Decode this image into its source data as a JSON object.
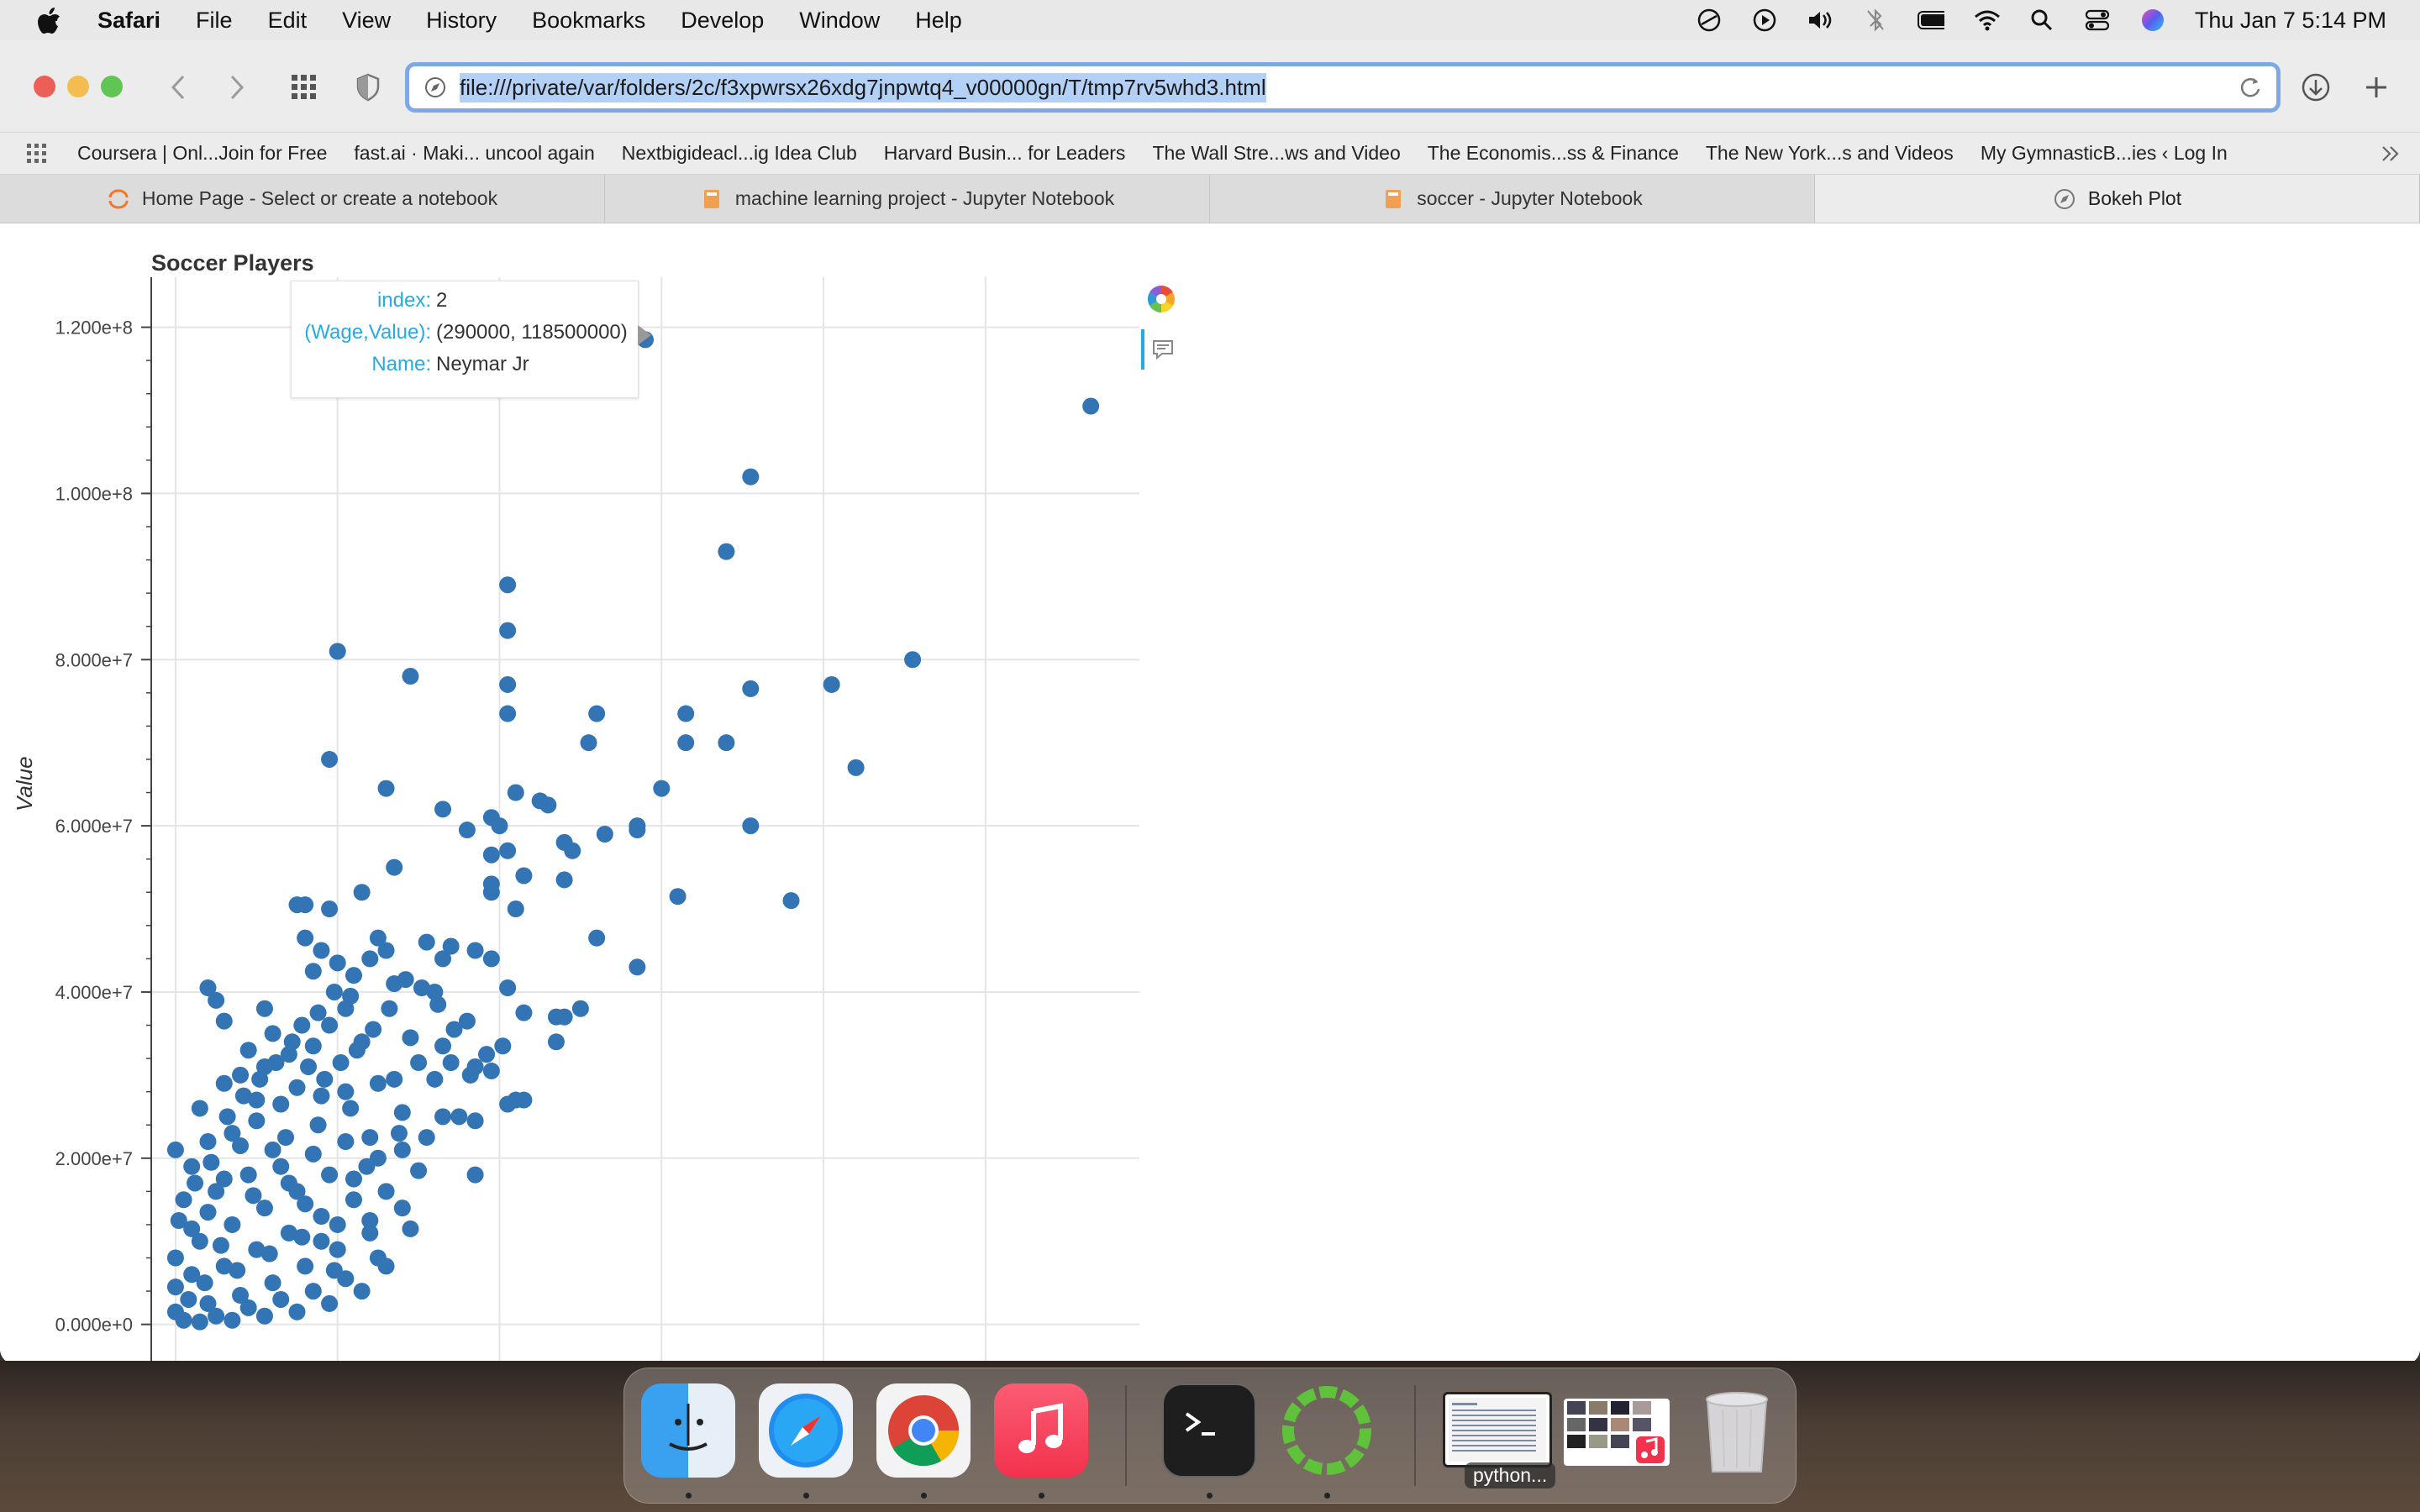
{
  "menubar": {
    "app": "Safari",
    "items": [
      "File",
      "Edit",
      "View",
      "History",
      "Bookmarks",
      "Develop",
      "Window",
      "Help"
    ],
    "clock": "Thu Jan 7  5:14 PM"
  },
  "browser": {
    "url": "file:///private/var/folders/2c/f3xpwrsx26xdg7jnpwtq4_v00000gn/T/tmp7rv5whd3.html",
    "favorites": [
      "Coursera | Onl...Join for Free",
      "fast.ai · Maki... uncool again",
      "Nextbigideacl...ig Idea Club",
      "Harvard Busin... for Leaders",
      "The Wall Stre...ws and Video",
      "The Economis...ss & Finance",
      "The New York...s and Videos",
      "My GymnasticB...ies ‹ Log In"
    ],
    "tabs": [
      {
        "label": "Home Page - Select or create a notebook",
        "icon": "jupyter-icon"
      },
      {
        "label": "machine learning project - Jupyter Notebook",
        "icon": "notebook-icon"
      },
      {
        "label": "soccer - Jupyter Notebook",
        "icon": "notebook-icon"
      },
      {
        "label": "Bokeh Plot",
        "icon": "compass-icon"
      }
    ]
  },
  "tooltip": {
    "index_label": "index:",
    "index_value": "2",
    "wv_label": "(Wage,Value):",
    "wv_value": "(290000, 118500000)",
    "name_label": "Name:",
    "name_value": "Neymar Jr"
  },
  "dock": {
    "running_label": "python..."
  },
  "chart_data": {
    "type": "scatter",
    "title": "Soccer Players",
    "xlabel": "",
    "ylabel": "Value",
    "xlim": [
      -15000,
      595000
    ],
    "ylim": [
      -6000000,
      124000000
    ],
    "yticks": [
      "0.000e+0",
      "2.000e+7",
      "4.000e+7",
      "6.000e+7",
      "8.000e+7",
      "1.000e+8",
      "1.200e+8"
    ],
    "ytick_values": [
      0,
      20000000,
      40000000,
      60000000,
      80000000,
      100000000,
      120000000
    ],
    "xtick_values": [
      0,
      100000,
      200000,
      300000,
      400000,
      500000
    ],
    "grid": true,
    "color": "#3274b4",
    "points": [
      [
        290000,
        118500000
      ],
      [
        565000,
        110500000
      ],
      [
        355000,
        102000000
      ],
      [
        340000,
        93000000
      ],
      [
        205000,
        89000000
      ],
      [
        205000,
        83500000
      ],
      [
        100000,
        81000000
      ],
      [
        455000,
        80000000
      ],
      [
        145000,
        78000000
      ],
      [
        405000,
        77000000
      ],
      [
        205000,
        77000000
      ],
      [
        355000,
        76500000
      ],
      [
        260000,
        73500000
      ],
      [
        315000,
        73500000
      ],
      [
        205000,
        73500000
      ],
      [
        255000,
        70000000
      ],
      [
        315000,
        70000000
      ],
      [
        340000,
        70000000
      ],
      [
        420000,
        67000000
      ],
      [
        95000,
        68000000
      ],
      [
        300000,
        64500000
      ],
      [
        130000,
        64500000
      ],
      [
        210000,
        64000000
      ],
      [
        225000,
        63000000
      ],
      [
        230000,
        62500000
      ],
      [
        165000,
        62000000
      ],
      [
        195000,
        61000000
      ],
      [
        200000,
        60000000
      ],
      [
        285000,
        60000000
      ],
      [
        285000,
        59500000
      ],
      [
        355000,
        60000000
      ],
      [
        265000,
        59000000
      ],
      [
        180000,
        59500000
      ],
      [
        240000,
        58000000
      ],
      [
        245000,
        57000000
      ],
      [
        205000,
        57000000
      ],
      [
        195000,
        56500000
      ],
      [
        215000,
        54000000
      ],
      [
        195000,
        53000000
      ],
      [
        240000,
        53500000
      ],
      [
        135000,
        55000000
      ],
      [
        195000,
        52000000
      ],
      [
        115000,
        52000000
      ],
      [
        310000,
        51500000
      ],
      [
        380000,
        51000000
      ],
      [
        210000,
        50000000
      ],
      [
        75000,
        50500000
      ],
      [
        80000,
        50500000
      ],
      [
        95000,
        50000000
      ],
      [
        260000,
        46500000
      ],
      [
        125000,
        46500000
      ],
      [
        80000,
        46500000
      ],
      [
        130000,
        45000000
      ],
      [
        155000,
        46000000
      ],
      [
        170000,
        45500000
      ],
      [
        185000,
        45000000
      ],
      [
        90000,
        45000000
      ],
      [
        120000,
        44000000
      ],
      [
        165000,
        44000000
      ],
      [
        195000,
        44000000
      ],
      [
        100000,
        43500000
      ],
      [
        285000,
        43000000
      ],
      [
        85000,
        42500000
      ],
      [
        110000,
        42000000
      ],
      [
        135000,
        41000000
      ],
      [
        160000,
        40000000
      ],
      [
        205000,
        40500000
      ],
      [
        20000,
        40500000
      ],
      [
        25000,
        39000000
      ],
      [
        215000,
        37500000
      ],
      [
        235000,
        37000000
      ],
      [
        240000,
        37000000
      ],
      [
        250000,
        38000000
      ],
      [
        235000,
        34000000
      ],
      [
        55000,
        38000000
      ],
      [
        105000,
        38000000
      ],
      [
        95000,
        36000000
      ],
      [
        30000,
        36500000
      ],
      [
        180000,
        36500000
      ],
      [
        145000,
        34500000
      ],
      [
        115000,
        34000000
      ],
      [
        165000,
        33500000
      ],
      [
        150000,
        31500000
      ],
      [
        170000,
        31500000
      ],
      [
        185000,
        31000000
      ],
      [
        195000,
        30500000
      ],
      [
        135000,
        29500000
      ],
      [
        160000,
        29500000
      ],
      [
        125000,
        29000000
      ],
      [
        210000,
        27000000
      ],
      [
        205000,
        26500000
      ],
      [
        215000,
        27000000
      ],
      [
        105000,
        28000000
      ],
      [
        90000,
        27500000
      ],
      [
        175000,
        25000000
      ],
      [
        185000,
        24500000
      ],
      [
        165000,
        25000000
      ],
      [
        140000,
        25500000
      ],
      [
        185000,
        18000000
      ],
      [
        155000,
        22500000
      ],
      [
        120000,
        22500000
      ],
      [
        140000,
        21000000
      ],
      [
        125000,
        20000000
      ],
      [
        0,
        21000000
      ],
      [
        10000,
        19000000
      ],
      [
        20000,
        22000000
      ],
      [
        35000,
        23000000
      ],
      [
        50000,
        24500000
      ],
      [
        65000,
        26500000
      ],
      [
        75000,
        28500000
      ],
      [
        40000,
        30000000
      ],
      [
        55000,
        31000000
      ],
      [
        70000,
        32500000
      ],
      [
        85000,
        33500000
      ],
      [
        60000,
        35000000
      ],
      [
        45000,
        33000000
      ],
      [
        30000,
        29000000
      ],
      [
        15000,
        26000000
      ],
      [
        5000,
        15000000
      ],
      [
        25000,
        16000000
      ],
      [
        45000,
        18000000
      ],
      [
        65000,
        19000000
      ],
      [
        85000,
        20500000
      ],
      [
        105000,
        22000000
      ],
      [
        95000,
        18000000
      ],
      [
        75000,
        16000000
      ],
      [
        55000,
        14000000
      ],
      [
        35000,
        12000000
      ],
      [
        15000,
        10000000
      ],
      [
        0,
        8000000
      ],
      [
        10000,
        6000000
      ],
      [
        30000,
        7000000
      ],
      [
        50000,
        9000000
      ],
      [
        70000,
        11000000
      ],
      [
        90000,
        13000000
      ],
      [
        110000,
        15000000
      ],
      [
        120000,
        11000000
      ],
      [
        100000,
        9000000
      ],
      [
        80000,
        7000000
      ],
      [
        60000,
        5000000
      ],
      [
        40000,
        3500000
      ],
      [
        20000,
        2500000
      ],
      [
        0,
        1500000
      ],
      [
        5000,
        500000
      ],
      [
        25000,
        1000000
      ],
      [
        45000,
        2000000
      ],
      [
        65000,
        3000000
      ],
      [
        85000,
        4000000
      ],
      [
        105000,
        5500000
      ],
      [
        125000,
        8000000
      ],
      [
        115000,
        4000000
      ],
      [
        95000,
        2500000
      ],
      [
        75000,
        1500000
      ],
      [
        55000,
        1000000
      ],
      [
        35000,
        500000
      ],
      [
        15000,
        300000
      ],
      [
        130000,
        16000000
      ],
      [
        120000,
        12500000
      ],
      [
        110000,
        17500000
      ],
      [
        100000,
        12000000
      ],
      [
        90000,
        10000000
      ],
      [
        80000,
        14500000
      ],
      [
        70000,
        17000000
      ],
      [
        60000,
        21000000
      ],
      [
        50000,
        27000000
      ],
      [
        40000,
        21500000
      ],
      [
        30000,
        17500000
      ],
      [
        20000,
        13500000
      ],
      [
        10000,
        11500000
      ],
      [
        0,
        4500000
      ],
      [
        145000,
        11500000
      ],
      [
        140000,
        14000000
      ],
      [
        150000,
        18500000
      ],
      [
        130000,
        7000000
      ],
      [
        108000,
        26000000
      ],
      [
        88000,
        24000000
      ],
      [
        68000,
        22500000
      ],
      [
        48000,
        15500000
      ],
      [
        28000,
        9500000
      ],
      [
        8000,
        3000000
      ],
      [
        18000,
        5000000
      ],
      [
        38000,
        6500000
      ],
      [
        58000,
        8500000
      ],
      [
        78000,
        10500000
      ],
      [
        98000,
        6500000
      ],
      [
        118000,
        19000000
      ],
      [
        138000,
        23000000
      ],
      [
        2000,
        12500000
      ],
      [
        12000,
        17000000
      ],
      [
        22000,
        19500000
      ],
      [
        32000,
        25000000
      ],
      [
        42000,
        27500000
      ],
      [
        52000,
        29500000
      ],
      [
        62000,
        31500000
      ],
      [
        72000,
        34000000
      ],
      [
        82000,
        31000000
      ],
      [
        92000,
        29500000
      ],
      [
        102000,
        31500000
      ],
      [
        112000,
        33000000
      ],
      [
        122000,
        35500000
      ],
      [
        132000,
        38000000
      ],
      [
        142000,
        41500000
      ],
      [
        152000,
        40500000
      ],
      [
        162000,
        38500000
      ],
      [
        172000,
        35500000
      ],
      [
        182000,
        30000000
      ],
      [
        192000,
        32500000
      ],
      [
        202000,
        33500000
      ],
      [
        98000,
        40000000
      ],
      [
        108000,
        39500000
      ],
      [
        88000,
        37500000
      ],
      [
        78000,
        36000000
      ]
    ]
  }
}
